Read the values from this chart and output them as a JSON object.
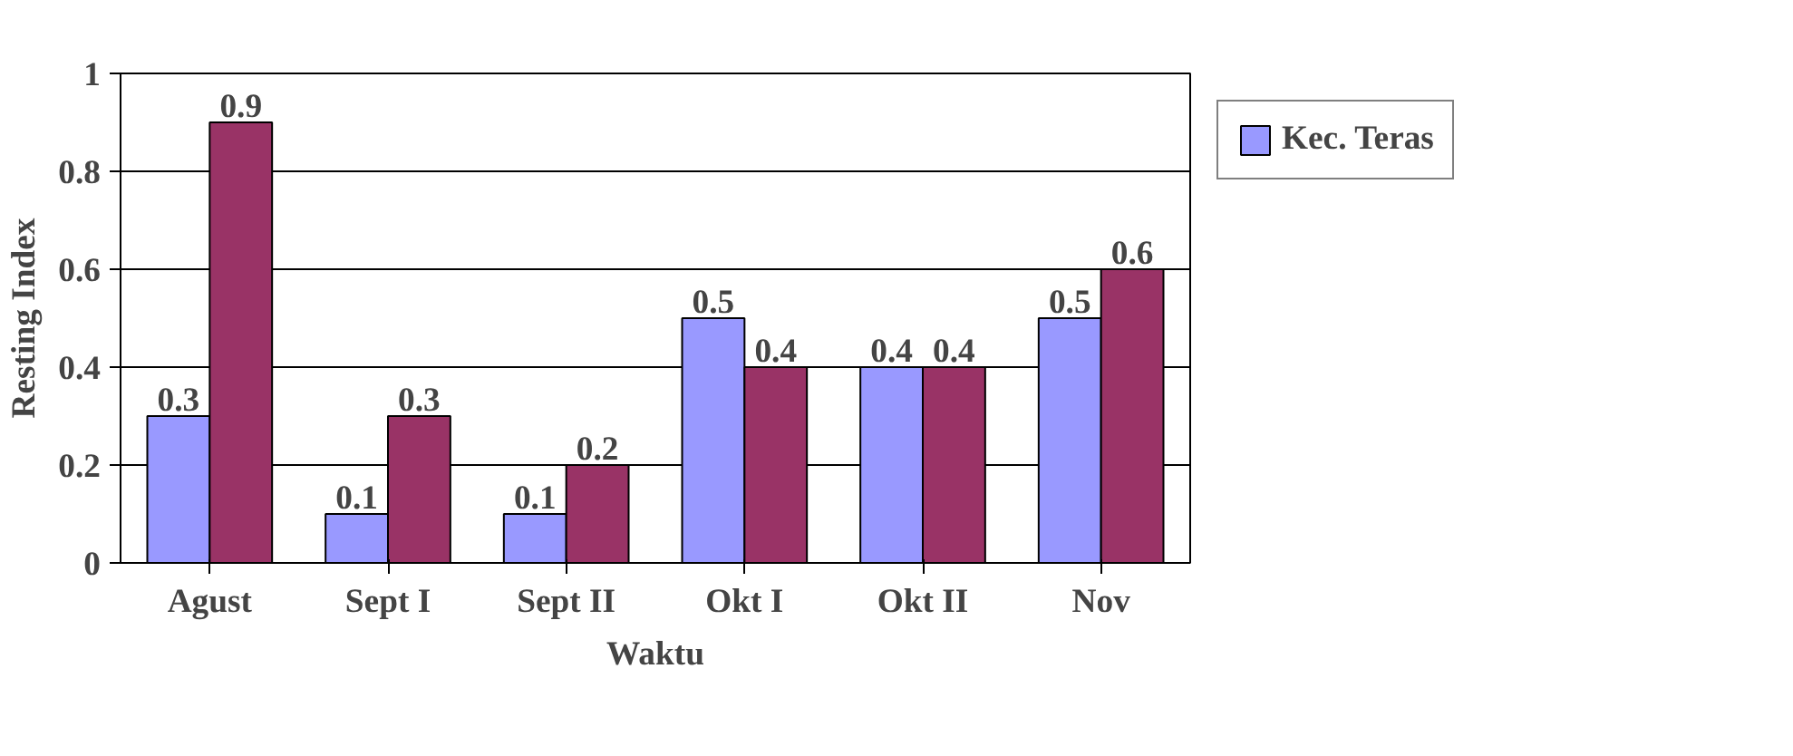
{
  "chart_data": {
    "type": "bar",
    "xlabel": "Waktu",
    "ylabel": "Resting Index",
    "categories": [
      "Agust",
      "Sept I",
      "Sept II",
      "Okt I",
      "Okt II",
      "Nov"
    ],
    "series": [
      {
        "name": "Kec. Teras",
        "color": "#9999ff",
        "values": [
          0.3,
          0.1,
          0.1,
          0.5,
          0.4,
          0.5
        ]
      },
      {
        "color": "#993366",
        "values": [
          0.9,
          0.3,
          0.2,
          0.4,
          0.4,
          0.6
        ]
      }
    ],
    "ylim": [
      0,
      1
    ],
    "yticks": [
      0,
      0.2,
      0.4,
      0.6,
      0.8,
      1
    ],
    "grid": "y",
    "legend": "right",
    "data_labels": true
  }
}
